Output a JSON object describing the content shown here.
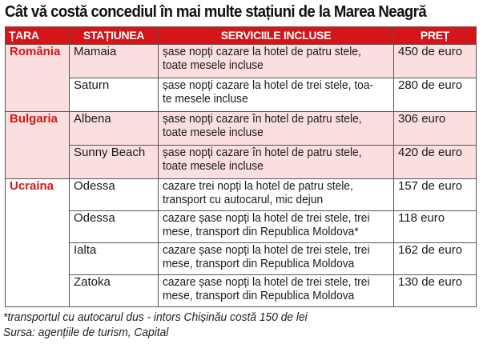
{
  "title": "Cât vă costă concediul în mai multe stațiuni de la Marea Neagră",
  "headers": {
    "country": "ȚARA",
    "resort": "STAȚIUNEA",
    "services": "SERVICIILE INCLUSE",
    "price": "PREȚ"
  },
  "colors": {
    "header_bg": "#d4161b",
    "country_text": "#d4161b",
    "band_bg": "#fbdede"
  },
  "rows": [
    {
      "country": "România",
      "resort": "Mamaia",
      "services_l1": "șase nopți cazare la hotel de patru stele,",
      "services_l2": "toate mesele incluse",
      "price": "450 de euro"
    },
    {
      "country": "",
      "resort": "Saturn",
      "services_l1": "șase nopți cazare la hotel de trei stele, toa-",
      "services_l2": "te mesele incluse",
      "price": "280 de euro"
    },
    {
      "country": "Bulgaria",
      "resort": "Albena",
      "services_l1": "șase nopți cazare în hotel de patru stele,",
      "services_l2": "toate mesele incluse",
      "price": "306 euro"
    },
    {
      "country": "",
      "resort": "Sunny Beach",
      "services_l1": "șase nopți cazare în hotel de patru stele,",
      "services_l2": "toate mesele incluse",
      "price": "420 de euro"
    },
    {
      "country": "Ucraina",
      "resort": "Odessa",
      "services_l1": "cazare trei nopți la hotel de patru stele,",
      "services_l2": "transport cu autocarul, mic dejun",
      "price": "157 de euro"
    },
    {
      "country": "",
      "resort": "Odessa",
      "services_l1": "cazare șase nopți la hotel de trei stele, trei",
      "services_l2": "mese, transport din Republica Moldova*",
      "price": "118 euro"
    },
    {
      "country": "",
      "resort": "Ialta",
      "services_l1": "cazare șase nopți la hotel de trei stele, trei",
      "services_l2": "mese, transport din Republica Moldova",
      "price": "162 de euro"
    },
    {
      "country": "",
      "resort": "Zatoka",
      "services_l1": "cazare șase nopți la hotel de trei stele, trei",
      "services_l2": "mese, transport din Republica Moldova",
      "price": "130 de euro"
    }
  ],
  "footnote": "*transportul cu autocarul dus - intors Chișinău costă 150 de lei",
  "source": "Sursa: agențiile de turism, Capital"
}
